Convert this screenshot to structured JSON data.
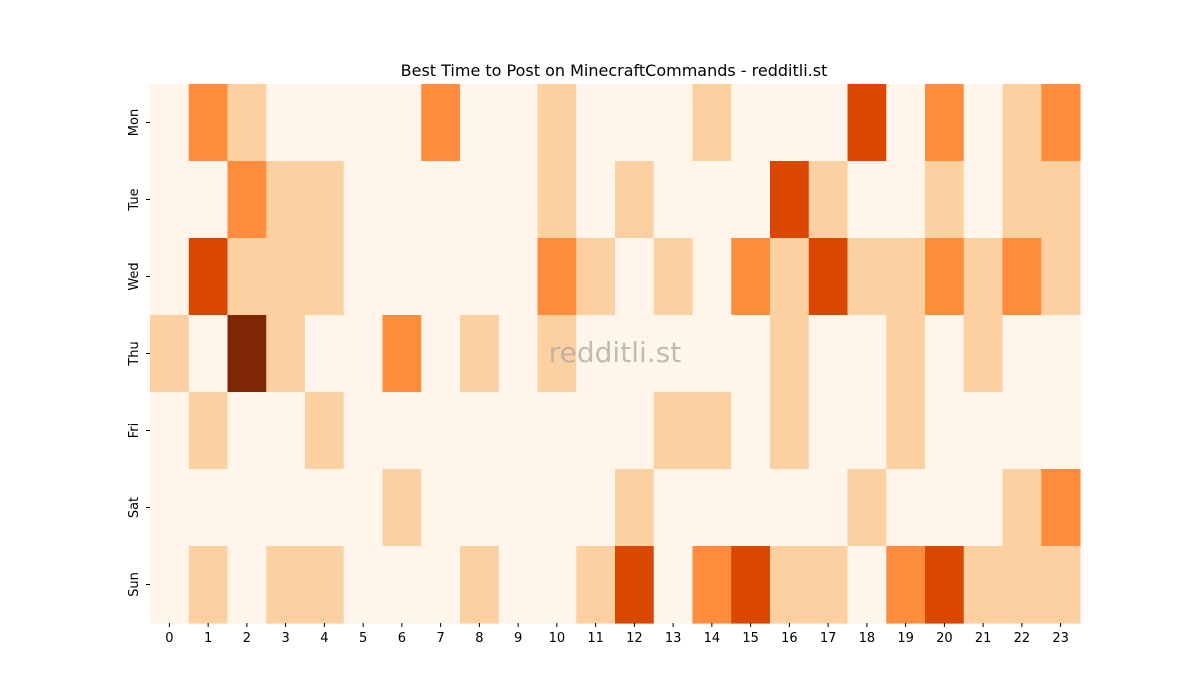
{
  "chart_data": {
    "type": "heatmap",
    "title": "Best Time to Post on MinecraftCommands - redditli.st",
    "xlabel": "",
    "ylabel": "",
    "x": [
      "0",
      "1",
      "2",
      "3",
      "4",
      "5",
      "6",
      "7",
      "8",
      "9",
      "10",
      "11",
      "12",
      "13",
      "14",
      "15",
      "16",
      "17",
      "18",
      "19",
      "20",
      "21",
      "22",
      "23"
    ],
    "y": [
      "Mon",
      "Tue",
      "Wed",
      "Thu",
      "Fri",
      "Sat",
      "Sun"
    ],
    "colormap": "Oranges",
    "scale": "0-4 (relative posting score)",
    "colors": [
      "#fff5eb",
      "#fdd0a2",
      "#fd8d3c",
      "#d94701",
      "#7f2704"
    ],
    "values": [
      [
        0,
        2,
        1,
        0,
        0,
        0,
        0,
        2,
        0,
        0,
        1,
        0,
        0,
        0,
        1,
        0,
        0,
        0,
        3,
        0,
        2,
        0,
        1,
        2
      ],
      [
        0,
        0,
        2,
        1,
        1,
        0,
        0,
        0,
        0,
        0,
        1,
        0,
        1,
        0,
        0,
        0,
        3,
        1,
        0,
        0,
        1,
        0,
        1,
        1
      ],
      [
        0,
        3,
        1,
        1,
        1,
        0,
        0,
        0,
        0,
        0,
        2,
        1,
        0,
        1,
        0,
        2,
        1,
        3,
        1,
        1,
        2,
        1,
        2,
        1
      ],
      [
        1,
        0,
        4,
        1,
        0,
        0,
        2,
        0,
        1,
        0,
        1,
        0,
        0,
        0,
        0,
        0,
        1,
        0,
        0,
        1,
        0,
        1,
        0,
        0
      ],
      [
        0,
        1,
        0,
        0,
        1,
        0,
        0,
        0,
        0,
        0,
        0,
        0,
        0,
        1,
        1,
        0,
        1,
        0,
        0,
        1,
        0,
        0,
        0,
        0
      ],
      [
        0,
        0,
        0,
        0,
        0,
        0,
        1,
        0,
        0,
        0,
        0,
        0,
        1,
        0,
        0,
        0,
        0,
        0,
        1,
        0,
        0,
        0,
        1,
        2
      ],
      [
        0,
        1,
        0,
        1,
        1,
        0,
        0,
        0,
        1,
        0,
        0,
        1,
        3,
        0,
        2,
        3,
        1,
        1,
        0,
        2,
        3,
        1,
        1,
        1
      ]
    ],
    "watermark": "redditli.st"
  }
}
